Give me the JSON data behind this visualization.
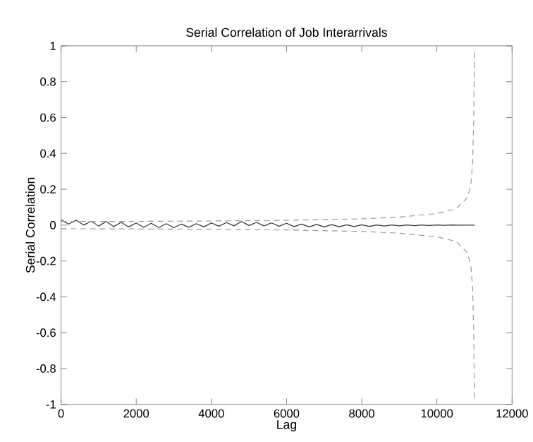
{
  "chart_data": {
    "type": "line",
    "title": "Serial Correlation of Job Interarrivals",
    "xlabel": "Lag",
    "ylabel": "Serial Correlation",
    "xlim": [
      0,
      12000
    ],
    "xticks": [
      0,
      2000,
      4000,
      6000,
      8000,
      10000,
      12000
    ],
    "ylim": [
      -1,
      1
    ],
    "yticks": [
      -1,
      -0.8,
      -0.6,
      -0.4,
      -0.2,
      0,
      0.2,
      0.4,
      0.6,
      0.8,
      1
    ],
    "grid": false,
    "series": [
      {
        "color": "#333333",
        "line_style": "solid",
        "x": [
          0,
          200,
          400,
          600,
          800,
          1000,
          1200,
          1400,
          1600,
          1800,
          2000,
          2200,
          2400,
          2600,
          2800,
          3000,
          3200,
          3400,
          3600,
          3800,
          4000,
          4200,
          4400,
          4600,
          4800,
          5000,
          5200,
          5400,
          5600,
          5800,
          6000,
          6200,
          6400,
          6600,
          6800,
          7000,
          7200,
          7400,
          7600,
          7800,
          8000,
          8200,
          8400,
          8600,
          8800,
          9000,
          9200,
          9400,
          9600,
          9800,
          10000,
          10200,
          10400,
          10600,
          10800,
          11000
        ],
        "values": [
          0.03,
          0.005,
          0.028,
          0.0,
          0.022,
          -0.005,
          0.02,
          -0.008,
          0.015,
          -0.01,
          0.012,
          -0.012,
          0.01,
          -0.013,
          0.008,
          -0.014,
          0.006,
          -0.012,
          0.008,
          -0.01,
          0.012,
          -0.006,
          0.014,
          -0.004,
          0.02,
          -0.002,
          0.015,
          -0.004,
          0.012,
          -0.006,
          0.01,
          -0.008,
          0.006,
          -0.01,
          0.004,
          -0.01,
          0.003,
          -0.009,
          0.002,
          -0.008,
          0.002,
          -0.007,
          0.001,
          -0.005,
          0.001,
          -0.004,
          0.001,
          -0.003,
          0.001,
          -0.002,
          0.001,
          -0.001,
          0.001,
          0,
          0,
          0
        ]
      },
      {
        "color": "#999999",
        "line_style": "dashed",
        "x": [
          0,
          2000,
          4000,
          6000,
          8000,
          9000,
          10000,
          10500,
          10800,
          10900,
          10950,
          10980,
          11000
        ],
        "values": [
          0.02,
          0.021,
          0.023,
          0.027,
          0.035,
          0.045,
          0.065,
          0.09,
          0.15,
          0.22,
          0.35,
          0.6,
          0.97
        ]
      },
      {
        "color": "#999999",
        "line_style": "dashed",
        "x": [
          0,
          2000,
          4000,
          6000,
          8000,
          9000,
          10000,
          10500,
          10800,
          10900,
          10950,
          10980,
          11000
        ],
        "values": [
          -0.02,
          -0.021,
          -0.023,
          -0.027,
          -0.035,
          -0.045,
          -0.065,
          -0.09,
          -0.15,
          -0.22,
          -0.35,
          -0.6,
          -0.97
        ]
      }
    ]
  }
}
